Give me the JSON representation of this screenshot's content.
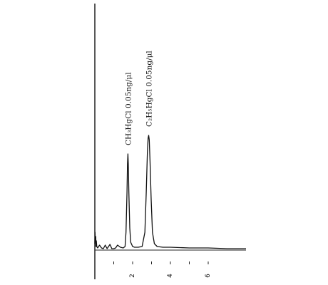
{
  "chart_data": {
    "type": "line",
    "title": "",
    "xlabel": "",
    "ylabel": "",
    "xlim": [
      0,
      8
    ],
    "ylim": [
      0,
      1
    ],
    "x_ticks": [
      1,
      2,
      3,
      4,
      5,
      6
    ],
    "x_tick_labels": [
      {
        "x": 2,
        "label": "2"
      },
      {
        "x": 4,
        "label": "4"
      },
      {
        "x": 6,
        "label": "6"
      }
    ],
    "peaks": [
      {
        "x": 1.75,
        "height": 0.67,
        "label": "CH₃HgCl 0.05ng/μl"
      },
      {
        "x": 2.85,
        "height": 0.8,
        "label": "C₂H₅HgCl 0.05ng/μl"
      }
    ],
    "series": [
      {
        "x": [
          0,
          0.01,
          0.03,
          0.05,
          0.06,
          0.08,
          0.1,
          0.15,
          0.25,
          0.35,
          0.45,
          0.55,
          0.65,
          0.8,
          0.9,
          1.0,
          1.1,
          1.2,
          1.35,
          1.5,
          1.6,
          1.65,
          1.7,
          1.73,
          1.75,
          1.77,
          1.8,
          1.85,
          1.9,
          2.0,
          2.1,
          2.3,
          2.5,
          2.65,
          2.72,
          2.78,
          2.82,
          2.85,
          2.88,
          2.92,
          2.98,
          3.05,
          3.15,
          3.3,
          3.6,
          4.0,
          5.0,
          6.0,
          7.0,
          8.0
        ],
        "y": [
          0.04,
          0.12,
          0.05,
          0.09,
          0.02,
          0.06,
          0.02,
          0.01,
          0.03,
          0.01,
          0.005,
          0.03,
          0.005,
          0.035,
          0.005,
          0.005,
          0.01,
          0.03,
          0.015,
          0.01,
          0.02,
          0.12,
          0.4,
          0.6,
          0.67,
          0.6,
          0.4,
          0.15,
          0.05,
          0.02,
          0.015,
          0.015,
          0.02,
          0.12,
          0.4,
          0.68,
          0.78,
          0.8,
          0.77,
          0.62,
          0.35,
          0.12,
          0.04,
          0.02,
          0.015,
          0.015,
          0.01,
          0.01,
          0.005,
          0.005
        ]
      }
    ]
  }
}
